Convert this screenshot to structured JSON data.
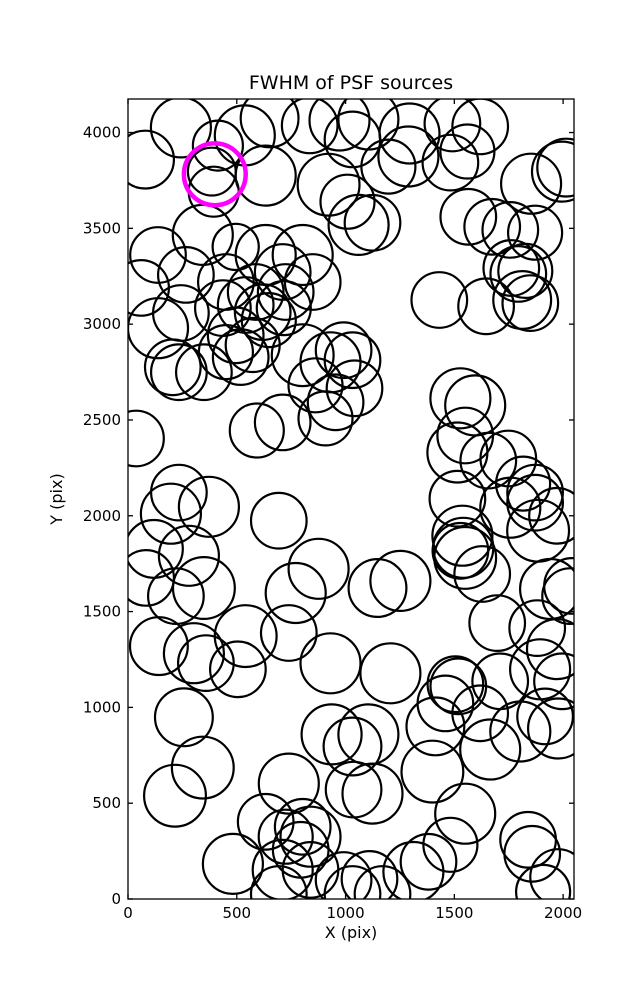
{
  "title": "FWHM of PSF sources",
  "colors": {
    "background": "#ffffff",
    "circle_stroke": "#000000",
    "highlight_stroke": "#ff00ff",
    "axis": "#000000"
  },
  "chart_data": {
    "type": "scatter",
    "title": "FWHM of PSF sources",
    "xlabel": "X (pix)",
    "ylabel": "Y (pix)",
    "xlim": [
      0,
      2050
    ],
    "ylim": [
      0,
      4175
    ],
    "xticks": [
      0,
      500,
      1000,
      1500,
      2000
    ],
    "yticks": [
      0,
      500,
      1000,
      1500,
      2000,
      2500,
      3000,
      3500,
      4000
    ],
    "grid": false,
    "legend": "none",
    "marker": "open-circle",
    "note": "each point drawn as unfilled circle, radius ~ FWHM in pixels",
    "highlighted_point": {
      "x": 399,
      "y": 3782,
      "r": 142,
      "color": "#ff00ff"
    },
    "points": [
      [
        243,
        4027,
        138
      ],
      [
        78,
        3859,
        133
      ],
      [
        413,
        3932,
        115
      ],
      [
        537,
        3985,
        138
      ],
      [
        651,
        4074,
        133
      ],
      [
        835,
        4037,
        128
      ],
      [
        972,
        4063,
        138
      ],
      [
        1105,
        4068,
        138
      ],
      [
        1294,
        3995,
        138
      ],
      [
        1289,
        3875,
        138
      ],
      [
        1197,
        3822,
        124
      ],
      [
        1491,
        4047,
        128
      ],
      [
        1619,
        4032,
        128
      ],
      [
        1560,
        3901,
        124
      ],
      [
        1482,
        3843,
        128
      ],
      [
        1853,
        3733,
        138
      ],
      [
        1995,
        3796,
        138
      ],
      [
        2014,
        3817,
        133
      ],
      [
        385,
        3796,
        110
      ],
      [
        394,
        3691,
        115
      ],
      [
        633,
        3775,
        138
      ],
      [
        922,
        3728,
        142
      ],
      [
        1009,
        3639,
        124
      ],
      [
        1032,
        3964,
        128
      ],
      [
        344,
        3466,
        138
      ],
      [
        138,
        3361,
        128
      ],
      [
        266,
        3257,
        128
      ],
      [
        495,
        3403,
        106
      ],
      [
        633,
        3361,
        138
      ],
      [
        450,
        3220,
        128
      ],
      [
        711,
        3272,
        128
      ],
      [
        803,
        3361,
        138
      ],
      [
        849,
        3220,
        128
      ],
      [
        587,
        3168,
        128
      ],
      [
        725,
        3168,
        128
      ],
      [
        60,
        3189,
        128
      ],
      [
        1060,
        3518,
        138
      ],
      [
        1124,
        3529,
        128
      ],
      [
        1564,
        3560,
        128
      ],
      [
        1674,
        3508,
        128
      ],
      [
        1757,
        3492,
        128
      ],
      [
        1871,
        3477,
        124
      ],
      [
        1762,
        3293,
        128
      ],
      [
        1794,
        3262,
        128
      ],
      [
        1826,
        3278,
        124
      ],
      [
        1812,
        3126,
        133
      ],
      [
        1849,
        3110,
        128
      ],
      [
        1431,
        3126,
        128
      ],
      [
        1646,
        3093,
        128
      ],
      [
        138,
        2979,
        138
      ],
      [
        243,
        3058,
        128
      ],
      [
        206,
        2775,
        128
      ],
      [
        234,
        2749,
        128
      ],
      [
        349,
        2749,
        128
      ],
      [
        436,
        3084,
        128
      ],
      [
        541,
        3100,
        128
      ],
      [
        619,
        3063,
        128
      ],
      [
        495,
        2942,
        128
      ],
      [
        450,
        2854,
        124
      ],
      [
        518,
        2828,
        128
      ],
      [
        573,
        2891,
        124
      ],
      [
        647,
        3021,
        124
      ],
      [
        716,
        3084,
        124
      ],
      [
        803,
        2838,
        142
      ],
      [
        931,
        2801,
        138
      ],
      [
        991,
        2864,
        128
      ],
      [
        862,
        2681,
        124
      ],
      [
        954,
        2592,
        128
      ],
      [
        908,
        2508,
        124
      ],
      [
        1041,
        2665,
        128
      ],
      [
        1032,
        2812,
        128
      ],
      [
        1528,
        2613,
        138
      ],
      [
        1596,
        2576,
        138
      ],
      [
        1550,
        2419,
        128
      ],
      [
        1514,
        2330,
        138
      ],
      [
        1656,
        2288,
        128
      ],
      [
        1748,
        2299,
        128
      ],
      [
        1816,
        2168,
        124
      ],
      [
        1871,
        2121,
        128
      ],
      [
        592,
        2445,
        124
      ],
      [
        711,
        2487,
        128
      ],
      [
        37,
        2403,
        128
      ],
      [
        234,
        2121,
        128
      ],
      [
        372,
        2047,
        138
      ],
      [
        197,
        2011,
        138
      ],
      [
        119,
        1827,
        133
      ],
      [
        83,
        1676,
        128
      ],
      [
        280,
        1791,
        138
      ],
      [
        349,
        1623,
        142
      ],
      [
        220,
        1581,
        128
      ],
      [
        693,
        1974,
        128
      ],
      [
        876,
        1723,
        138
      ],
      [
        771,
        1597,
        138
      ],
      [
        1147,
        1623,
        133
      ],
      [
        1252,
        1660,
        138
      ],
      [
        541,
        1372,
        142
      ],
      [
        739,
        1388,
        128
      ],
      [
        142,
        1320,
        133
      ],
      [
        303,
        1283,
        138
      ],
      [
        358,
        1231,
        128
      ],
      [
        505,
        1199,
        128
      ],
      [
        931,
        1230,
        138
      ],
      [
        1206,
        1178,
        138
      ],
      [
        1514,
        2089,
        128
      ],
      [
        1537,
        1896,
        138
      ],
      [
        1541,
        1833,
        138
      ],
      [
        1550,
        1780,
        142
      ],
      [
        1528,
        1817,
        128
      ],
      [
        1628,
        1696,
        128
      ],
      [
        1757,
        2042,
        138
      ],
      [
        1871,
        2068,
        128
      ],
      [
        1885,
        1922,
        142
      ],
      [
        1972,
        2000,
        128
      ],
      [
        1940,
        1618,
        138
      ],
      [
        2032,
        1581,
        128
      ],
      [
        1697,
        1440,
        128
      ],
      [
        1881,
        1414,
        128
      ],
      [
        1972,
        1304,
        138
      ],
      [
        1505,
        1121,
        128
      ],
      [
        1518,
        1110,
        128
      ],
      [
        1711,
        1136,
        128
      ],
      [
        1894,
        1199,
        138
      ],
      [
        1995,
        1136,
        128
      ],
      [
        2041,
        1634,
        128
      ],
      [
        257,
        948,
        133
      ],
      [
        344,
        686,
        142
      ],
      [
        216,
        539,
        142
      ],
      [
        936,
        859,
        138
      ],
      [
        1032,
        796,
        133
      ],
      [
        1037,
        571,
        128
      ],
      [
        1124,
        550,
        138
      ],
      [
        739,
        602,
        138
      ],
      [
        633,
        403,
        128
      ],
      [
        482,
        183,
        138
      ],
      [
        803,
        377,
        128
      ],
      [
        839,
        325,
        138
      ],
      [
        794,
        257,
        128
      ],
      [
        725,
        325,
        124
      ],
      [
        711,
        152,
        138
      ],
      [
        839,
        152,
        128
      ],
      [
        693,
        26,
        128
      ],
      [
        991,
        99,
        128
      ],
      [
        1032,
        26,
        128
      ],
      [
        1105,
        859,
        138
      ],
      [
        1413,
        901,
        133
      ],
      [
        1459,
        1021,
        128
      ],
      [
        1619,
        969,
        128
      ],
      [
        1803,
        874,
        138
      ],
      [
        1917,
        953,
        128
      ],
      [
        1977,
        890,
        138
      ],
      [
        1665,
        780,
        138
      ],
      [
        1399,
        665,
        142
      ],
      [
        1550,
        445,
        138
      ],
      [
        1482,
        283,
        124
      ],
      [
        1381,
        194,
        128
      ],
      [
        1312,
        141,
        138
      ],
      [
        1110,
        105,
        128
      ],
      [
        1170,
        26,
        128
      ],
      [
        1839,
        309,
        128
      ],
      [
        1858,
        236,
        128
      ],
      [
        1977,
        115,
        128
      ],
      [
        1908,
        37,
        124
      ]
    ]
  }
}
